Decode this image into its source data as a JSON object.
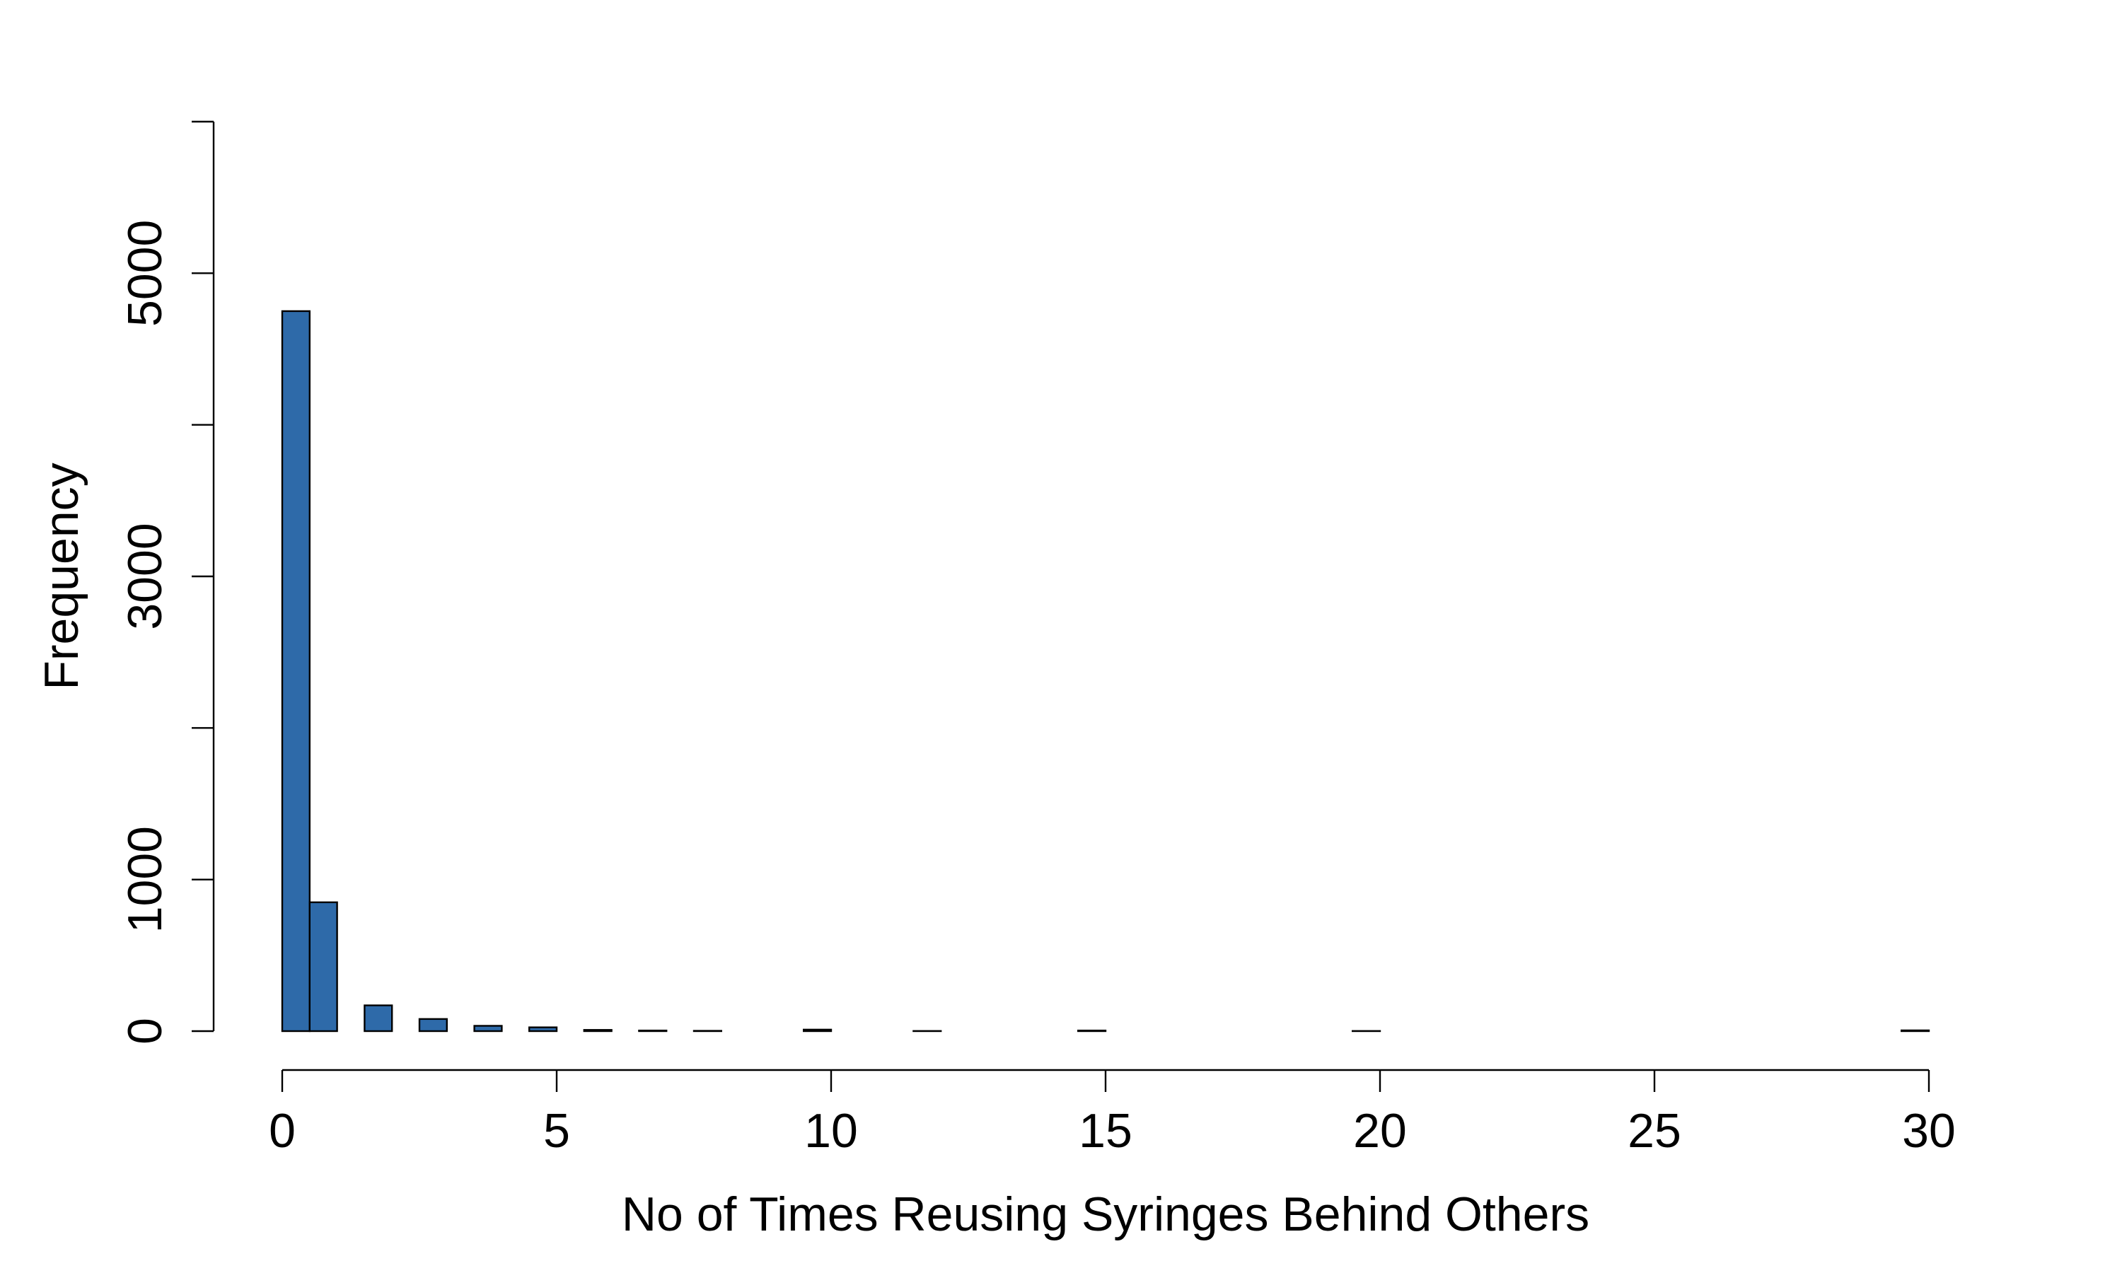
{
  "chart_data": {
    "type": "bar",
    "title": "",
    "xlabel": "No of Times Reusing Syringes Behind Others",
    "ylabel": "Frequency",
    "xlim": [
      0,
      30
    ],
    "ylim": [
      0,
      6000
    ],
    "x_ticks": [
      0,
      5,
      10,
      15,
      20,
      25,
      30
    ],
    "y_ticks": [
      0,
      1000,
      2000,
      3000,
      4000,
      5000,
      6000
    ],
    "y_tick_labels": [
      "0",
      "1000",
      "",
      "3000",
      "",
      "5000",
      ""
    ],
    "bin_width": 0.5,
    "bins": [
      {
        "start": 0.0,
        "end": 0.5,
        "count": 4750
      },
      {
        "start": 0.5,
        "end": 1.0,
        "count": 850
      },
      {
        "start": 1.0,
        "end": 1.5,
        "count": 0
      },
      {
        "start": 1.5,
        "end": 2.0,
        "count": 170
      },
      {
        "start": 2.0,
        "end": 2.5,
        "count": 0
      },
      {
        "start": 2.5,
        "end": 3.0,
        "count": 80
      },
      {
        "start": 3.0,
        "end": 3.5,
        "count": 0
      },
      {
        "start": 3.5,
        "end": 4.0,
        "count": 35
      },
      {
        "start": 4.0,
        "end": 4.5,
        "count": 0
      },
      {
        "start": 4.5,
        "end": 5.0,
        "count": 25
      },
      {
        "start": 5.0,
        "end": 5.5,
        "count": 0
      },
      {
        "start": 5.5,
        "end": 6.0,
        "count": 8
      },
      {
        "start": 6.0,
        "end": 6.5,
        "count": 0
      },
      {
        "start": 6.5,
        "end": 7.0,
        "count": 4
      },
      {
        "start": 7.0,
        "end": 7.5,
        "count": 0
      },
      {
        "start": 7.5,
        "end": 8.0,
        "count": 2
      },
      {
        "start": 9.5,
        "end": 10.0,
        "count": 10
      },
      {
        "start": 11.5,
        "end": 12.0,
        "count": 1
      },
      {
        "start": 14.5,
        "end": 15.0,
        "count": 4
      },
      {
        "start": 19.5,
        "end": 20.0,
        "count": 1
      },
      {
        "start": 29.5,
        "end": 30.0,
        "count": 5
      }
    ],
    "bar_color": "#2E6AA9",
    "grid": false
  }
}
